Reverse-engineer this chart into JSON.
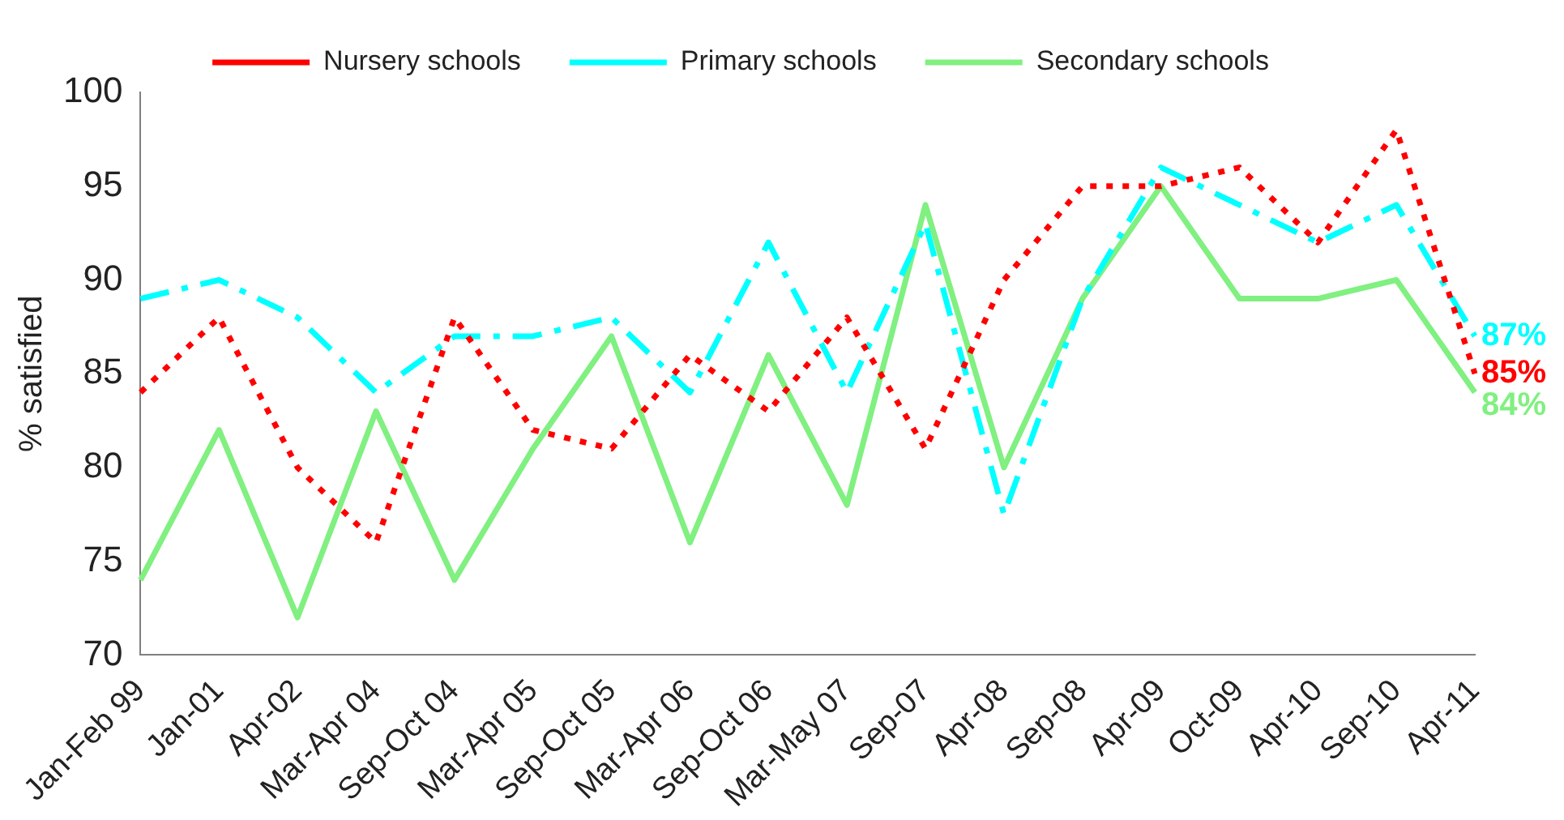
{
  "chart_data": {
    "type": "line",
    "ylabel": "% satisfied",
    "categories": [
      "Jan-Feb 99",
      "Jan-01",
      "Apr-02",
      "Mar-Apr 04",
      "Sep-Oct 04",
      "Mar-Apr 05",
      "Sep-Oct 05",
      "Mar-Apr 06",
      "Sep-Oct 06",
      "Mar-May 07",
      "Sep-07",
      "Apr-08",
      "Sep-08",
      "Apr-09",
      "Oct-09",
      "Apr-10",
      "Sep-10",
      "Apr-11"
    ],
    "series": [
      {
        "name": "Nursery schools",
        "color": "#ff0000",
        "line_style": "dotted",
        "values": [
          84,
          88,
          80,
          76,
          88,
          82,
          81,
          86,
          83,
          88,
          81,
          90,
          95,
          95,
          96,
          92,
          98,
          85
        ],
        "value_labels": [
          null,
          null,
          null,
          null,
          null,
          null,
          null,
          null,
          null,
          null,
          null,
          null,
          null,
          null,
          null,
          null,
          null,
          "85%"
        ]
      },
      {
        "name": "Primary schools",
        "color": "#00ffff",
        "line_style": "dashed",
        "values": [
          89,
          90,
          88,
          84,
          87,
          87,
          88,
          84,
          92,
          84,
          93,
          77.5,
          89,
          96,
          94,
          92,
          94,
          87
        ],
        "value_labels": [
          null,
          null,
          null,
          null,
          null,
          null,
          null,
          null,
          null,
          null,
          null,
          null,
          null,
          null,
          null,
          null,
          null,
          "87%"
        ]
      },
      {
        "name": "Secondary schools",
        "color": "#80f080",
        "line_style": "solid",
        "values": [
          74,
          82,
          72,
          83,
          74,
          81,
          87,
          76,
          86,
          78,
          94,
          80,
          89,
          95,
          89,
          89,
          90,
          84
        ],
        "value_labels": [
          null,
          null,
          null,
          null,
          null,
          null,
          null,
          null,
          null,
          null,
          null,
          null,
          null,
          null,
          null,
          null,
          null,
          "84%"
        ]
      }
    ],
    "ylim": [
      70,
      100
    ],
    "yticks": [
      70,
      75,
      80,
      85,
      90,
      95,
      100
    ],
    "grid": false,
    "legend": "top",
    "marker": "none"
  }
}
